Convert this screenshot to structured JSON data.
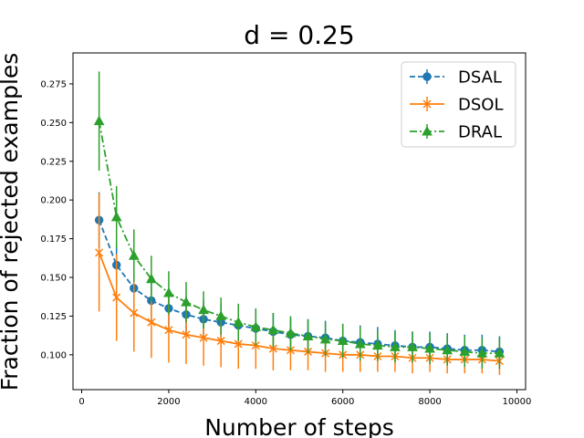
{
  "chart_data": {
    "type": "line",
    "title": "d = 0.25",
    "xlabel": "Number of steps",
    "ylabel": "Fraction of rejected examples",
    "xlim": [
      -200,
      10200
    ],
    "ylim": [
      0.0775,
      0.295
    ],
    "xticks": [
      0,
      2000,
      4000,
      6000,
      8000,
      10000
    ],
    "xtick_labels": [
      "0",
      "2000",
      "4000",
      "6000",
      "8000",
      "10000"
    ],
    "yticks": [
      0.1,
      0.125,
      0.15,
      0.175,
      0.2,
      0.225,
      0.25,
      0.275
    ],
    "ytick_labels": [
      "0.100",
      "0.125",
      "0.150",
      "0.175",
      "0.200",
      "0.225",
      "0.250",
      "0.275"
    ],
    "grid": false,
    "legend_position": "top-right",
    "x": [
      400,
      800,
      1200,
      1600,
      2000,
      2400,
      2800,
      3200,
      3600,
      4000,
      4400,
      4800,
      5200,
      5600,
      6000,
      6400,
      6800,
      7200,
      7600,
      8000,
      8400,
      8800,
      9200,
      9600
    ],
    "series": [
      {
        "name": "DSAL",
        "color": "#1f77b4",
        "marker": "circle",
        "linestyle": "dashed",
        "values": [
          0.187,
          0.158,
          0.143,
          0.135,
          0.13,
          0.126,
          0.123,
          0.121,
          0.119,
          0.117,
          0.115,
          0.113,
          0.112,
          0.111,
          0.109,
          0.108,
          0.107,
          0.106,
          0.105,
          0.105,
          0.104,
          0.103,
          0.103,
          0.102
        ],
        "errors": [
          0.018,
          0.013,
          0.012,
          0.013,
          0.012,
          0.012,
          0.012,
          0.012,
          0.012,
          0.012,
          0.012,
          0.011,
          0.011,
          0.011,
          0.011,
          0.011,
          0.011,
          0.01,
          0.01,
          0.01,
          0.01,
          0.01,
          0.01,
          0.01
        ]
      },
      {
        "name": "DSOL",
        "color": "#ff7f0e",
        "marker": "x",
        "linestyle": "solid",
        "values": [
          0.166,
          0.137,
          0.127,
          0.121,
          0.116,
          0.113,
          0.111,
          0.109,
          0.107,
          0.106,
          0.104,
          0.103,
          0.102,
          0.101,
          0.1,
          0.1,
          0.099,
          0.099,
          0.098,
          0.098,
          0.097,
          0.097,
          0.097,
          0.096
        ],
        "errors": [
          0.038,
          0.028,
          0.025,
          0.023,
          0.021,
          0.019,
          0.018,
          0.017,
          0.016,
          0.015,
          0.014,
          0.013,
          0.012,
          0.012,
          0.011,
          0.011,
          0.01,
          0.01,
          0.01,
          0.009,
          0.009,
          0.009,
          0.009,
          0.009
        ]
      },
      {
        "name": "DRAL",
        "color": "#2ca02c",
        "marker": "triangle",
        "linestyle": "dashdot",
        "values": [
          0.251,
          0.189,
          0.164,
          0.149,
          0.14,
          0.134,
          0.129,
          0.125,
          0.121,
          0.118,
          0.116,
          0.114,
          0.112,
          0.11,
          0.109,
          0.107,
          0.106,
          0.105,
          0.105,
          0.104,
          0.103,
          0.102,
          0.101,
          0.101
        ],
        "errors": [
          0.032,
          0.02,
          0.017,
          0.015,
          0.014,
          0.013,
          0.012,
          0.012,
          0.012,
          0.012,
          0.011,
          0.011,
          0.011,
          0.011,
          0.011,
          0.011,
          0.01,
          0.01,
          0.01,
          0.01,
          0.01,
          0.01,
          0.01,
          0.01
        ]
      }
    ]
  }
}
